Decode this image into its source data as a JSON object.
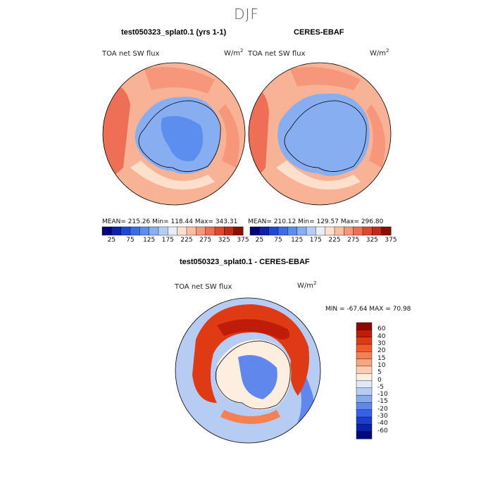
{
  "season": "DJF",
  "units": "W/m",
  "units_exp": "2",
  "panels": {
    "model": {
      "title": "test050323_splat0.1 (yrs 1-1)",
      "var_label": "TOA net SW flux",
      "stats": "MEAN= 215.26  Min= 118.44  Max= 343.31"
    },
    "obs": {
      "title": "CERES-EBAF",
      "var_label": "TOA net SW flux",
      "stats": "MEAN= 210.12  Min= 129.57  Max= 296.80"
    },
    "diff": {
      "title": "test050323_splat0.1 - CERES-EBAF",
      "var_label": "TOA net SW flux",
      "minmax": "MIN = -67.64 MAX =  70.98"
    }
  },
  "chart_data": [
    {
      "type": "heatmap",
      "projection": "south-polar-stereographic",
      "title": "test050323_splat0.1 (yrs 1-1)",
      "variable": "TOA net SW flux",
      "units": "W/m2",
      "mean": 215.26,
      "min": 118.44,
      "max": 343.31,
      "colorbar_ticks": [
        25,
        75,
        125,
        175,
        225,
        275,
        325,
        375
      ],
      "colorbar_colors": [
        "#00007a",
        "#0d22a8",
        "#1c48d3",
        "#3a6ce8",
        "#5c8ef0",
        "#88aef2",
        "#b5cef6",
        "#e9eef9",
        "#fde0cc",
        "#fbbea4",
        "#f6977c",
        "#ee6f55",
        "#dd4830",
        "#c42a18",
        "#8a0f05"
      ]
    },
    {
      "type": "heatmap",
      "projection": "south-polar-stereographic",
      "title": "CERES-EBAF",
      "variable": "TOA net SW flux",
      "units": "W/m2",
      "mean": 210.12,
      "min": 129.57,
      "max": 296.8,
      "colorbar_ticks": [
        25,
        75,
        125,
        175,
        225,
        275,
        325,
        375
      ],
      "colorbar_colors": [
        "#00007a",
        "#0d22a8",
        "#1c48d3",
        "#3a6ce8",
        "#5c8ef0",
        "#88aef2",
        "#b5cef6",
        "#e9eef9",
        "#fde0cc",
        "#fbbea4",
        "#f6977c",
        "#ee6f55",
        "#dd4830",
        "#c42a18",
        "#8a0f05"
      ]
    },
    {
      "type": "heatmap",
      "projection": "south-polar-stereographic",
      "title": "test050323_splat0.1 - CERES-EBAF",
      "variable": "TOA net SW flux",
      "units": "W/m2",
      "min": -67.64,
      "max": 70.98,
      "colorbar_ticks": [
        60,
        40,
        30,
        20,
        15,
        10,
        5,
        0,
        -5,
        -10,
        -15,
        -20,
        -30,
        -40,
        -60
      ],
      "colorbar_colors": [
        "#8c0a03",
        "#bf1c0a",
        "#df3a14",
        "#ef5b2a",
        "#f48054",
        "#f7a67e",
        "#fbcdb0",
        "#fdeee0",
        "#dde9f8",
        "#b6ccf2",
        "#8aaaf0",
        "#6088ec",
        "#3562e3",
        "#1a3fd0",
        "#0b22a6",
        "#010a78"
      ]
    }
  ]
}
